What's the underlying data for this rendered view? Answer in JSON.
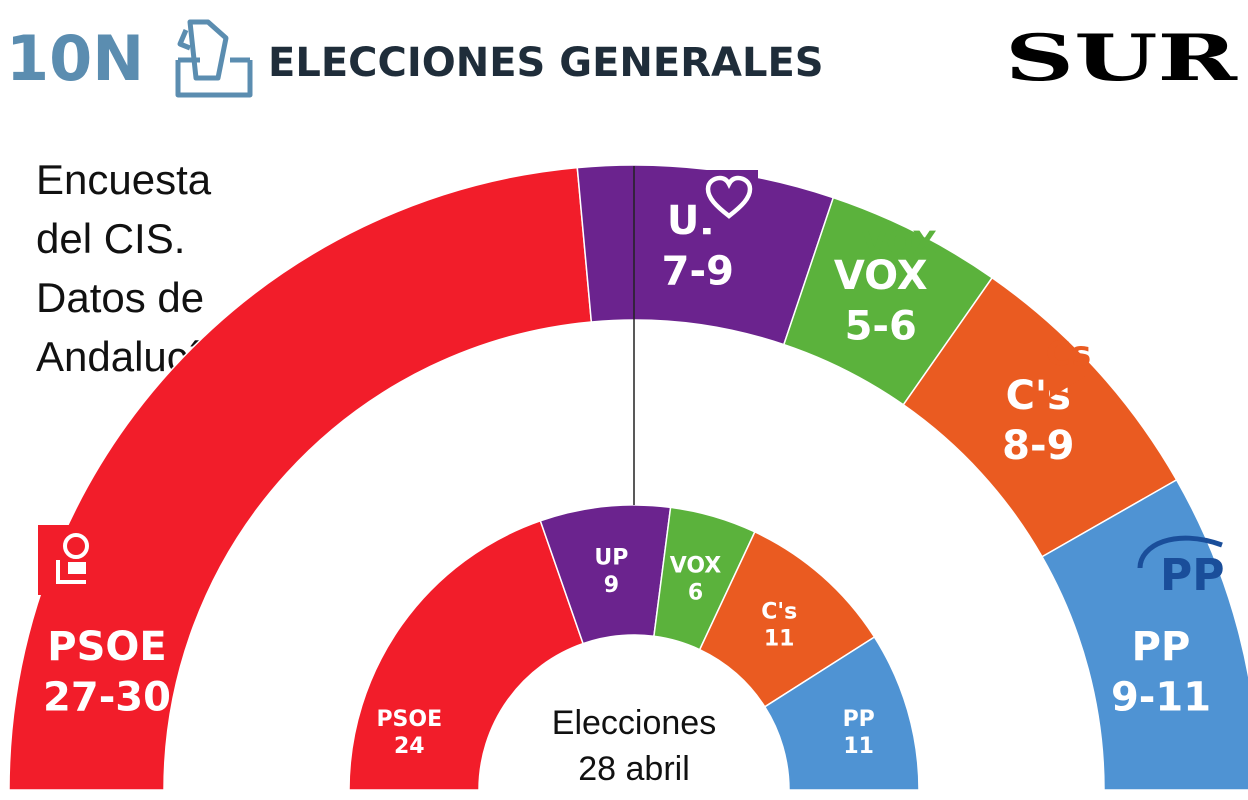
{
  "header": {
    "date_code": "10N",
    "title": "ELECCIONES GENERALES",
    "brand": "SUR"
  },
  "subtitle_lines": [
    "Encuesta",
    "del CIS.",
    "Datos de",
    "Andalucía"
  ],
  "colors": {
    "PSOE": "#f21d2a",
    "UP": "#6b238e",
    "VOX": "#5bb23c",
    "Cs": "#ea5b21",
    "PP": "#4f93d3",
    "header_blue": "#5b8db0",
    "header_text": "#1f2d3a"
  },
  "icons": {
    "ballot": "ballot-box-icon",
    "UP": "podemos-heart-logo",
    "VOX": "vox-logo",
    "Cs": "ciudadanos-logo",
    "PP": "pp-logo",
    "PSOE": "psoe-rose-logo"
  },
  "logo_text": {
    "VOX": "VOX",
    "Cs": "Cs",
    "PP": "PP"
  },
  "center_label": [
    "Elecciones",
    "28 abril"
  ],
  "chart_data": {
    "type": "pie",
    "parties": [
      "PSOE",
      "UP",
      "VOX",
      "Cs",
      "PP"
    ],
    "series": [
      {
        "name": "Encuesta del CIS",
        "labels": [
          "PSOE",
          "UP",
          "VOX",
          "C's",
          "PP"
        ],
        "values": [
          "27-30",
          "7-9",
          "5-6",
          "8-9",
          "9-11"
        ],
        "range": [
          [
            27,
            30
          ],
          [
            7,
            9
          ],
          [
            5,
            6
          ],
          [
            8,
            9
          ],
          [
            9,
            11
          ]
        ]
      },
      {
        "name": "Elecciones 28 abril",
        "labels": [
          "PSOE",
          "UP",
          "VOX",
          "C's",
          "PP"
        ],
        "values": [
          24,
          9,
          6,
          11,
          11
        ]
      }
    ]
  }
}
